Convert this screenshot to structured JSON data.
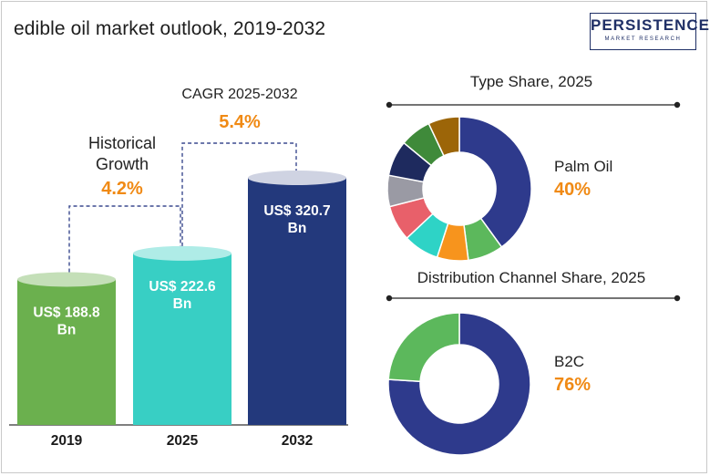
{
  "header": {
    "title": "edible oil market outlook, 2019-2032",
    "logo_main": "PERSISTENCE",
    "logo_sub": "MARKET RESEARCH"
  },
  "colors": {
    "bar_2019": "#6bb04e",
    "bar_2025": "#38cfc4",
    "bar_2032": "#23397c",
    "accent": "#f08a15",
    "dash": "#3b4a8f"
  },
  "chart_data": [
    {
      "type": "bar",
      "categories": [
        "2019",
        "2025",
        "2032"
      ],
      "values": [
        188.8,
        222.6,
        320.7
      ],
      "value_labels": [
        [
          "US$ 188.8",
          "Bn"
        ],
        [
          "US$ 222.6",
          "Bn"
        ],
        [
          "US$ 320.7",
          "Bn"
        ]
      ],
      "annotations": [
        {
          "label_lines": [
            "Historical",
            "Growth"
          ],
          "value": "4.2%"
        },
        {
          "label_lines": [
            "CAGR 2025-2032"
          ],
          "value": "5.4%"
        }
      ]
    },
    {
      "type": "pie",
      "title": "Type  Share, 2025",
      "highlight_label": "Palm Oil",
      "highlight_value": "40%",
      "slices": [
        {
          "value": 40,
          "color": "#2e3a8c"
        },
        {
          "value": 8,
          "color": "#5cb85c"
        },
        {
          "value": 7,
          "color": "#f7941d"
        },
        {
          "value": 8,
          "color": "#2ed3c6"
        },
        {
          "value": 8,
          "color": "#e8606a"
        },
        {
          "value": 7,
          "color": "#9a9aa4"
        },
        {
          "value": 8,
          "color": "#1e2a5e"
        },
        {
          "value": 7,
          "color": "#3f8a3a"
        },
        {
          "value": 7,
          "color": "#9c6508"
        }
      ]
    },
    {
      "type": "pie",
      "title": "Distribution Channel  Share, 2025",
      "highlight_label": "B2C",
      "highlight_value": "76%",
      "slices": [
        {
          "value": 76,
          "color": "#2e3a8c"
        },
        {
          "value": 24,
          "color": "#5cb85c"
        }
      ]
    }
  ]
}
